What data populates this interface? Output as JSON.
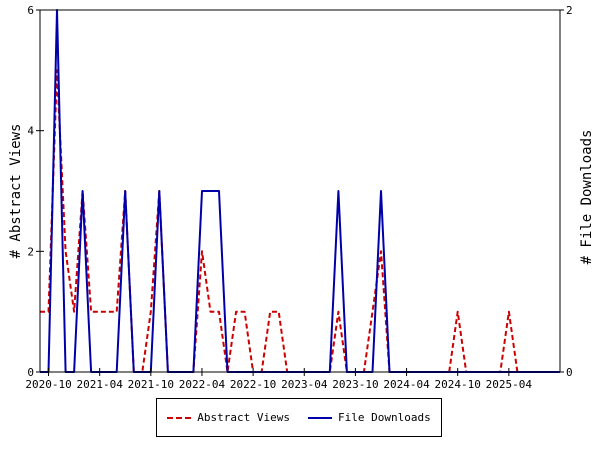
{
  "chart_data": {
    "type": "line",
    "ylabel_left": "# Abstract Views",
    "ylabel_right": "# File Downloads",
    "ylim_left": [
      0,
      6
    ],
    "ylim_right": [
      0,
      2
    ],
    "yticks_left": [
      0,
      2,
      4,
      6
    ],
    "yticks_right": [
      0,
      2
    ],
    "xlim_months": [
      "2020-09",
      "2025-10"
    ],
    "xtick_labels": [
      "2020-10",
      "2021-04",
      "2021-10",
      "2022-04",
      "2022-10",
      "2023-04",
      "2023-10",
      "2024-04",
      "2024-10",
      "2025-04"
    ],
    "months": [
      "2020-09",
      "2020-10",
      "2020-11",
      "2020-12",
      "2021-01",
      "2021-02",
      "2021-03",
      "2021-04",
      "2021-05",
      "2021-06",
      "2021-07",
      "2021-08",
      "2021-09",
      "2021-10",
      "2021-11",
      "2021-12",
      "2022-01",
      "2022-02",
      "2022-03",
      "2022-04",
      "2022-05",
      "2022-06",
      "2022-07",
      "2022-08",
      "2022-09",
      "2022-10",
      "2022-11",
      "2022-12",
      "2023-01",
      "2023-02",
      "2023-03",
      "2023-04",
      "2023-05",
      "2023-06",
      "2023-07",
      "2023-08",
      "2023-09",
      "2023-10",
      "2023-11",
      "2023-12",
      "2024-01",
      "2024-02",
      "2024-03",
      "2024-04",
      "2024-05",
      "2024-06",
      "2024-07",
      "2024-08",
      "2024-09",
      "2024-10",
      "2024-11",
      "2024-12",
      "2025-01",
      "2025-02",
      "2025-03",
      "2025-04",
      "2025-05",
      "2025-06",
      "2025-07",
      "2025-08",
      "2025-09",
      "2025-10"
    ],
    "series": [
      {
        "name": "Abstract Views",
        "axis": "left",
        "color": "#cc0000",
        "style": "dashed",
        "values": [
          1,
          1,
          5,
          2,
          1,
          3,
          1,
          1,
          1,
          1,
          3,
          0,
          0,
          1,
          3,
          0,
          0,
          0,
          0,
          2,
          1,
          1,
          0,
          1,
          1,
          0,
          0,
          1,
          1,
          0,
          0,
          0,
          0,
          0,
          0,
          1,
          0,
          0,
          0,
          1,
          2,
          0,
          0,
          0,
          0,
          0,
          0,
          0,
          0,
          1,
          0,
          0,
          0,
          0,
          0,
          1,
          0,
          0,
          0,
          0,
          0,
          0
        ]
      },
      {
        "name": "File Downloads",
        "axis": "right",
        "color": "#0000aa",
        "style": "solid",
        "values": [
          0,
          0,
          2,
          0,
          0,
          1,
          0,
          0,
          0,
          0,
          1,
          0,
          0,
          0,
          1,
          0,
          0,
          0,
          0,
          1,
          1,
          1,
          0,
          0,
          0,
          0,
          0,
          0,
          0,
          0,
          0,
          0,
          0,
          0,
          0,
          1,
          0,
          0,
          0,
          0,
          1,
          0,
          0,
          0,
          0,
          0,
          0,
          0,
          0,
          0,
          0,
          0,
          0,
          0,
          0,
          0,
          0,
          0,
          0,
          0,
          0,
          0
        ]
      }
    ],
    "legend_position": "bottom",
    "grid": false
  }
}
